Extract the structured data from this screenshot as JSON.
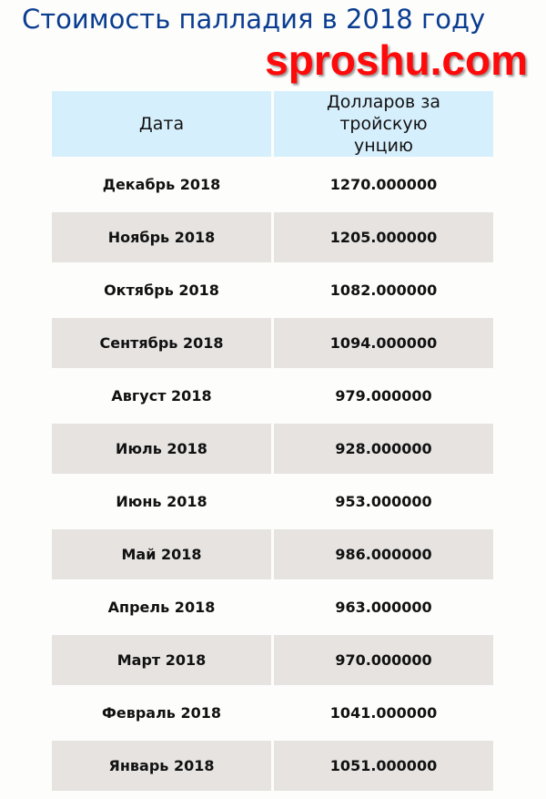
{
  "title": "Стоимость палладия в 2018 году",
  "watermark": "sproshu.com",
  "headers": {
    "date": "Дата",
    "price": "Долларов за тройскую унцию"
  },
  "rows": [
    {
      "date": "Декабрь 2018",
      "price": "1270.000000"
    },
    {
      "date": "Ноябрь 2018",
      "price": "1205.000000"
    },
    {
      "date": "Октябрь 2018",
      "price": "1082.000000"
    },
    {
      "date": "Сентябрь 2018",
      "price": "1094.000000"
    },
    {
      "date": "Август 2018",
      "price": "979.000000"
    },
    {
      "date": "Июль 2018",
      "price": "928.000000"
    },
    {
      "date": "Июнь 2018",
      "price": "953.000000"
    },
    {
      "date": "Май 2018",
      "price": "986.000000"
    },
    {
      "date": "Апрель 2018",
      "price": "963.000000"
    },
    {
      "date": "Март 2018",
      "price": "970.000000"
    },
    {
      "date": "Февраль 2018",
      "price": "1041.000000"
    },
    {
      "date": "Январь 2018",
      "price": "1051.000000"
    }
  ]
}
